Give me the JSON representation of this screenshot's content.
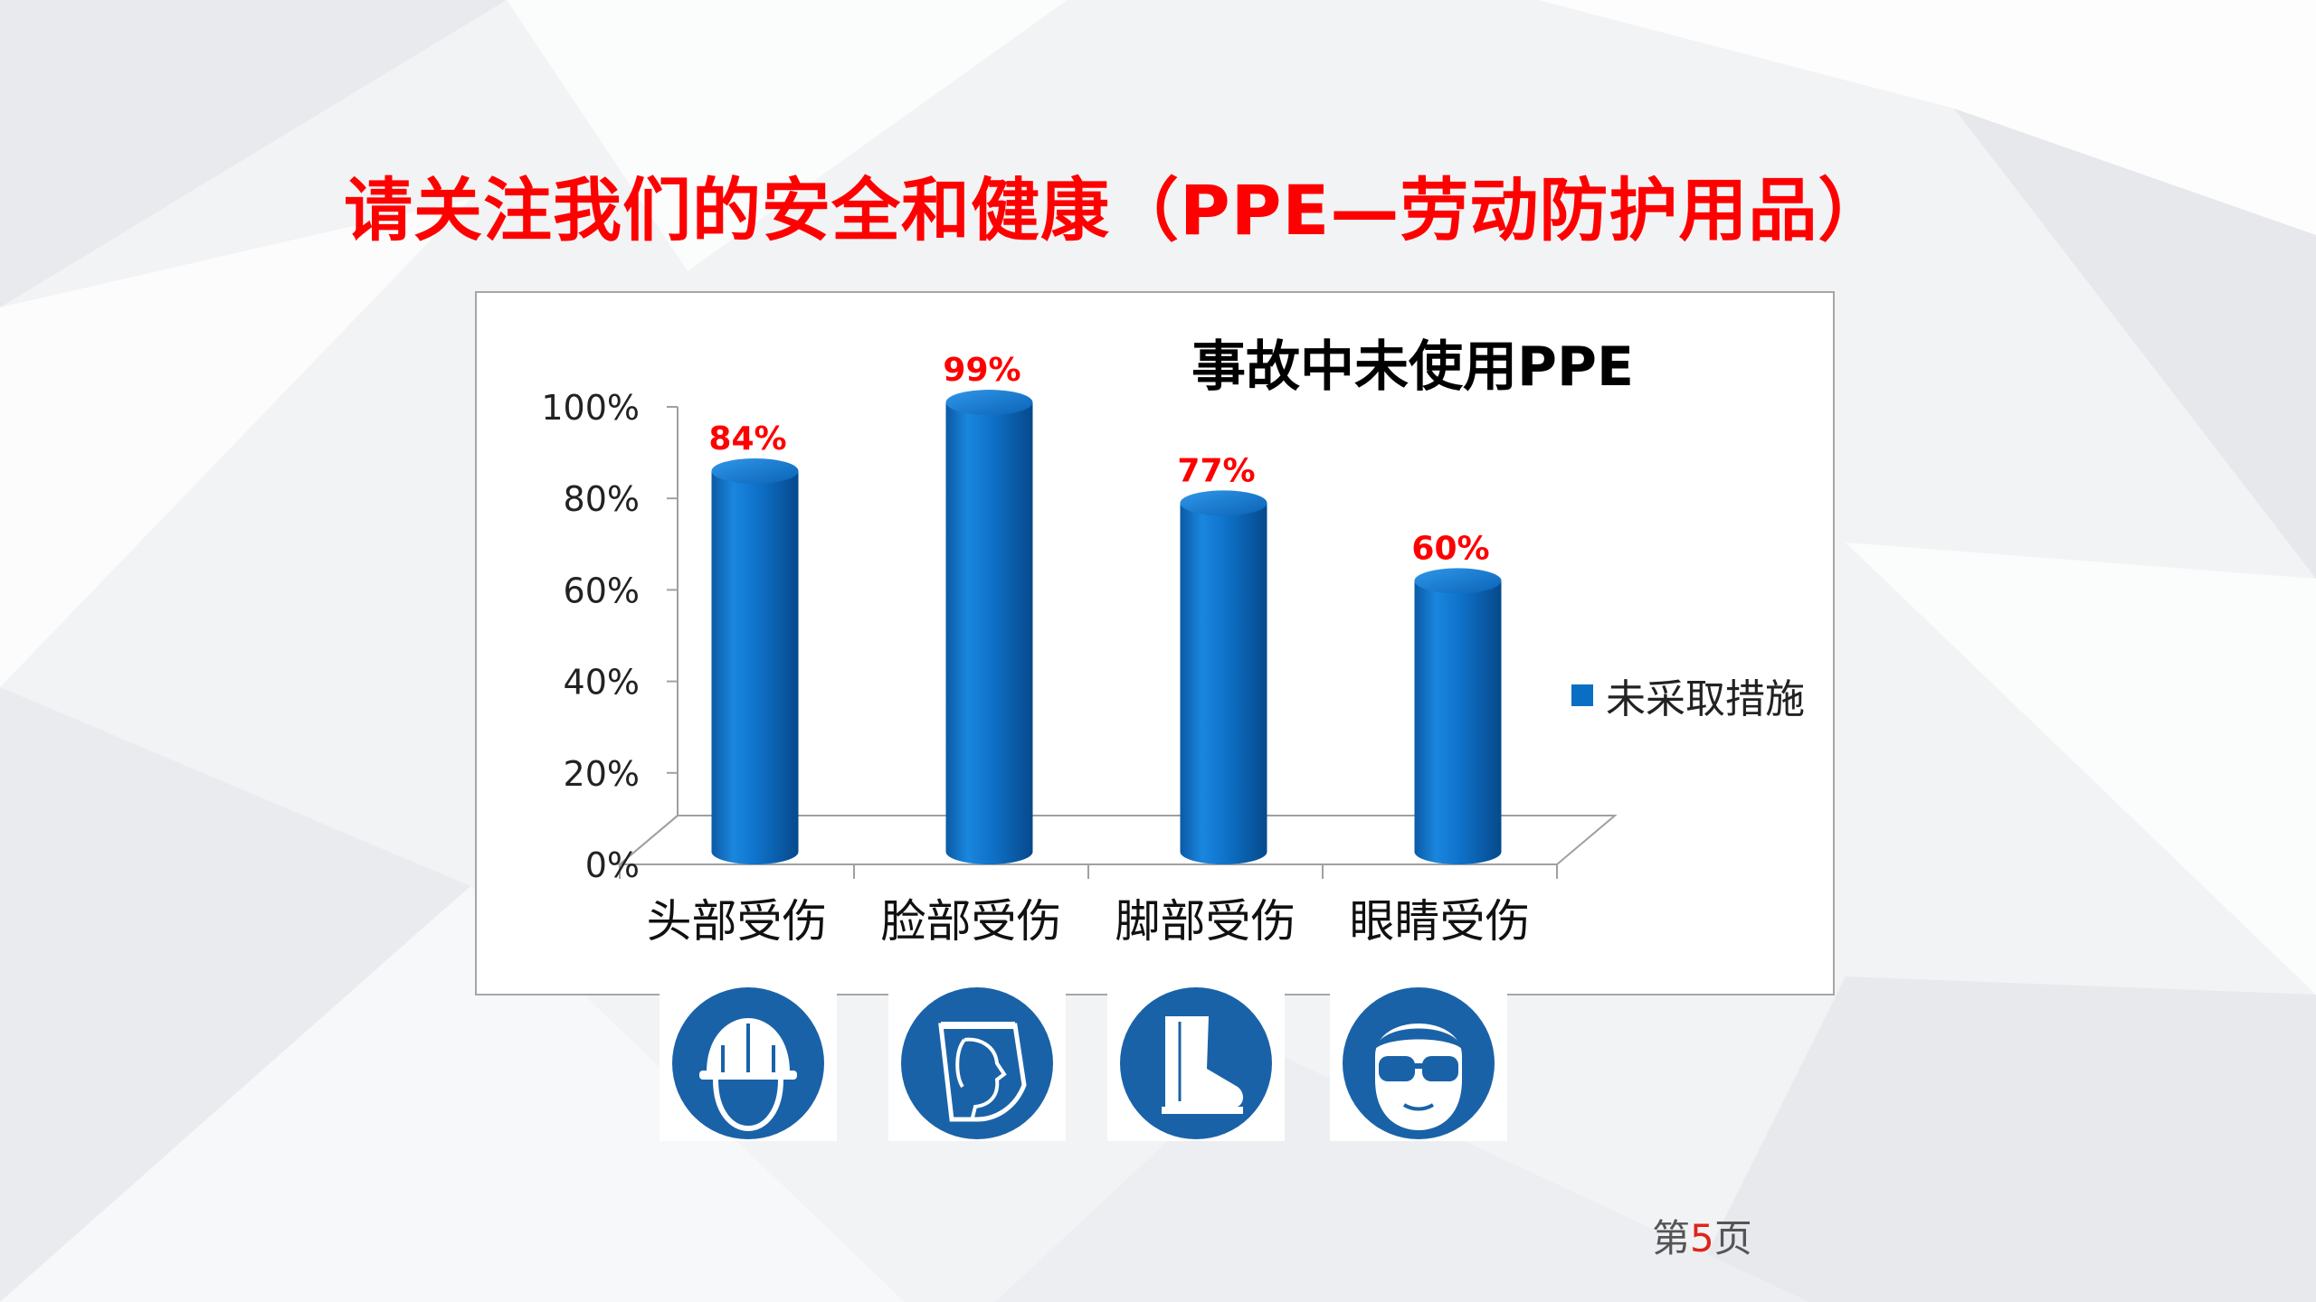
{
  "slide": {
    "title": "请关注我们的安全和健康（PPE—劳动防护用品）",
    "page_prefix": "第",
    "page_number": "5",
    "page_suffix": "页"
  },
  "colors": {
    "title": "#ff0000",
    "bar": "#0a6fc2",
    "data_label": "#ff0000",
    "sign": "#1a62a8"
  },
  "chart_data": {
    "type": "bar",
    "title": "事故中未使用PPE",
    "categories": [
      "头部受伤",
      "脸部受伤",
      "脚部受伤",
      "眼睛受伤"
    ],
    "series": [
      {
        "name": "未采取措施",
        "values": [
          84,
          99,
          77,
          60
        ]
      }
    ],
    "data_labels": [
      "84%",
      "99%",
      "77%",
      "60%"
    ],
    "yticks": [
      "0%",
      "20%",
      "40%",
      "60%",
      "80%",
      "100%"
    ],
    "ylim": [
      0,
      100
    ],
    "legend_position": "right",
    "grid": false,
    "style": "3d-cylinder"
  },
  "signs": [
    {
      "icon": "hard-hat-icon"
    },
    {
      "icon": "face-shield-icon"
    },
    {
      "icon": "safety-boot-icon"
    },
    {
      "icon": "safety-goggles-icon"
    }
  ]
}
